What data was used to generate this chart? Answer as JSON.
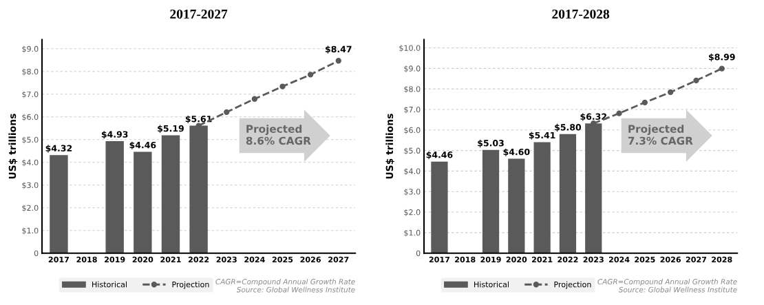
{
  "chart_data": [
    {
      "type": "bar",
      "title": "2017-2027",
      "ylabel": "US$ trillions",
      "categories": [
        "2017",
        "2018",
        "2019",
        "2020",
        "2021",
        "2022",
        "2023",
        "2024",
        "2025",
        "2026",
        "2027"
      ],
      "series": [
        {
          "name": "Historical",
          "color": "#5a5a5a",
          "values": [
            4.32,
            null,
            4.93,
            4.46,
            5.19,
            5.61,
            null,
            null,
            null,
            null,
            null
          ],
          "value_labels": [
            "$4.32",
            null,
            "$4.93",
            "$4.46",
            "$5.19",
            "$5.61",
            null,
            null,
            null,
            null,
            null
          ]
        },
        {
          "name": "Projection",
          "type": "line",
          "color": "#5a5a5a",
          "line_style": "dashed",
          "marker": "circle",
          "values": [
            null,
            null,
            null,
            null,
            null,
            5.61,
            6.21,
            6.79,
            7.34,
            7.86,
            8.47
          ],
          "value_labels": [
            null,
            null,
            null,
            null,
            null,
            null,
            null,
            null,
            null,
            null,
            "$8.47"
          ]
        }
      ],
      "ylim": [
        0,
        9.4
      ],
      "yticks": [
        0,
        {
          "value": 1,
          "label": "$1.0"
        },
        {
          "value": 2,
          "label": "$2.0"
        },
        {
          "value": 3,
          "label": "$3.0"
        },
        {
          "value": 4,
          "label": "$4.0"
        },
        {
          "value": 5,
          "label": "$5.0"
        },
        {
          "value": 6,
          "label": "$6.0"
        },
        {
          "value": 7,
          "label": "$7.0"
        },
        {
          "value": 8,
          "label": "$8.0"
        },
        {
          "value": 9,
          "label": "$9.0"
        }
      ],
      "grid": "y",
      "legend": "bottom",
      "annotations": [
        "Projected\n8.6% CAGR",
        "CAGR=Compound Annual Growth Rate\nSource: Global Wellness Institute"
      ]
    },
    {
      "type": "bar",
      "title": "2017-2028",
      "ylabel": "US$ trillions",
      "categories": [
        "2017",
        "2018",
        "2019",
        "2020",
        "2021",
        "2022",
        "2023",
        "2024",
        "2025",
        "2026",
        "2027",
        "2028"
      ],
      "series": [
        {
          "name": "Historical",
          "color": "#5a5a5a",
          "values": [
            4.46,
            null,
            5.03,
            4.6,
            5.41,
            5.8,
            6.32,
            null,
            null,
            null,
            null,
            null
          ],
          "value_labels": [
            "$4.46",
            null,
            "$5.03",
            "$4.60",
            "$5.41",
            "$5.80",
            "$6.32",
            null,
            null,
            null,
            null,
            null
          ]
        },
        {
          "name": "Projection",
          "type": "line",
          "color": "#5a5a5a",
          "line_style": "dashed",
          "marker": "circle",
          "values": [
            null,
            null,
            null,
            null,
            null,
            null,
            6.32,
            6.81,
            7.34,
            7.84,
            8.41,
            8.99
          ],
          "value_labels": [
            null,
            null,
            null,
            null,
            null,
            null,
            null,
            null,
            null,
            null,
            null,
            "$8.99"
          ]
        }
      ],
      "ylim": [
        0,
        10.4
      ],
      "yticks": [
        0,
        {
          "value": 1,
          "label": "$1.0"
        },
        {
          "value": 2,
          "label": "$2.0"
        },
        {
          "value": 3,
          "label": "$3.0"
        },
        {
          "value": 4,
          "label": "$4.0"
        },
        {
          "value": 5,
          "label": "$5.0"
        },
        {
          "value": 6,
          "label": "$6.0"
        },
        {
          "value": 7,
          "label": "$7.0"
        },
        {
          "value": 8,
          "label": "$8.0"
        },
        {
          "value": 9,
          "label": "$9.0"
        },
        {
          "value": 10,
          "label": "$10.0"
        }
      ],
      "grid": "y",
      "legend": "bottom",
      "annotations": [
        "Projected\n7.3% CAGR",
        "CAGR=Compound Annual Growth Rate\nSource: Global Wellness Institute"
      ]
    }
  ]
}
